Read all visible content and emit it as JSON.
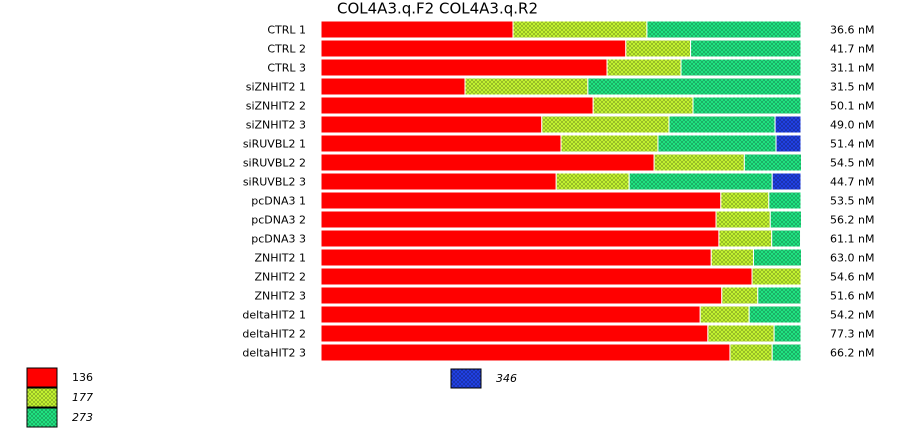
{
  "chart_data": {
    "type": "stacked_bar_horizontal",
    "title": "COL4A3.q.F2  COL4A3.q.R2",
    "categories": [
      "CTRL 1",
      "CTRL 2",
      "CTRL 3",
      "siZNHIT2 1",
      "siZNHIT2 2",
      "siZNHIT2 3",
      "siRUVBL2 1",
      "siRUVBL2 2",
      "siRUVBL2 3",
      "pcDNA3 1",
      "pcDNA3 2",
      "pcDNA3 3",
      "ZNHIT2 1",
      "ZNHIT2 2",
      "ZNHIT2 3",
      "deltaHIT2 1",
      "deltaHIT2 2",
      "deltaHIT2 3"
    ],
    "row_totals": [
      "36.6 nM",
      "41.7 nM",
      "31.1 nM",
      "31.5 nM",
      "50.1 nM",
      "49.0 nM",
      "51.4 nM",
      "54.5 nM",
      "44.7 nM",
      "53.5 nM",
      "56.2 nM",
      "61.1 nM",
      "63.0 nM",
      "54.6 nM",
      "51.6 nM",
      "54.2 nM",
      "77.3 nM",
      "66.2 nM"
    ],
    "xlim": [
      0,
      100
    ],
    "series": [
      {
        "name": "136",
        "color": "#ff0000",
        "pattern": false,
        "italic": false,
        "values": [
          40,
          63.5,
          59.6,
          30,
          56.7,
          46,
          50,
          69.4,
          49,
          83.3,
          82.3,
          82.9,
          81.3,
          89.8,
          83.5,
          79,
          80.6,
          85.2
        ]
      },
      {
        "name": "177",
        "color": "#ccff33",
        "pattern": true,
        "italic": true,
        "values": [
          27.9,
          13.5,
          15.4,
          25.6,
          20.8,
          26.5,
          20.2,
          18.8,
          15.2,
          10,
          11.3,
          11,
          8.8,
          10.2,
          7.5,
          10.2,
          13.8,
          8.8
        ]
      },
      {
        "name": "273",
        "color": "#22ee88",
        "pattern": true,
        "italic": true,
        "values": [
          32.1,
          23,
          25,
          44.4,
          22.5,
          22.1,
          24.6,
          11.9,
          29.8,
          6.7,
          6.5,
          6,
          10,
          null,
          9,
          10.8,
          5.6,
          6
        ]
      },
      {
        "name": "346",
        "color": "#2244ee",
        "pattern": true,
        "italic": true,
        "values": [
          null,
          null,
          null,
          null,
          null,
          5.4,
          5.2,
          null,
          6,
          null,
          null,
          null,
          null,
          null,
          null,
          null,
          null,
          null
        ]
      }
    ]
  }
}
